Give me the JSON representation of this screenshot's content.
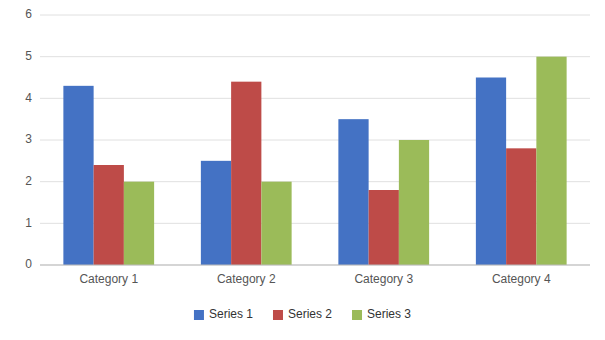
{
  "chart_data": {
    "type": "bar",
    "categories": [
      "Category 1",
      "Category 2",
      "Category 3",
      "Category 4"
    ],
    "series": [
      {
        "name": "Series 1",
        "values": [
          4.3,
          2.5,
          3.5,
          4.5
        ],
        "color": "#4472C4"
      },
      {
        "name": "Series 2",
        "values": [
          2.4,
          4.4,
          1.8,
          2.8
        ],
        "color": "#BE4B48"
      },
      {
        "name": "Series 3",
        "values": [
          2.0,
          2.0,
          3.0,
          5.0
        ],
        "color": "#9BBB59"
      }
    ],
    "ylim": [
      0,
      6
    ],
    "yticks": [
      0,
      1,
      2,
      3,
      4,
      5,
      6
    ],
    "grid": true,
    "legend": "bottom"
  }
}
